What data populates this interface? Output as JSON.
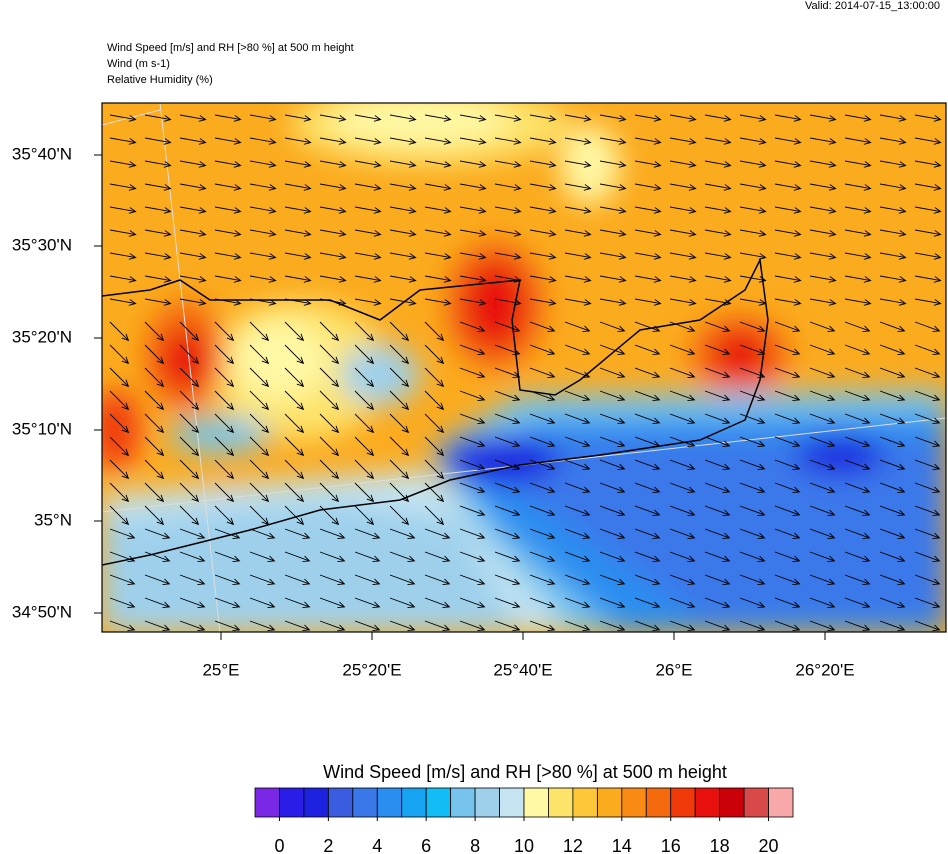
{
  "header": {
    "valid": "Valid: 2014-07-15_13:00:00",
    "lines": [
      "Wind Speed [m/s] and RH [>80 %] at 500 m height",
      "Wind   (m s-1)",
      "Relative Humidity   (%)"
    ]
  },
  "map": {
    "lat_labels": [
      "35°40'N",
      "35°30'N",
      "35°20'N",
      "35°10'N",
      "35°N",
      "34°50'N"
    ],
    "lon_labels": [
      "25°E",
      "25°20'E",
      "25°40'E",
      "26°E",
      "26°20'E"
    ]
  },
  "colorbar": {
    "title": "Wind Speed [m/s] and RH [>80 %] at 500 m height",
    "colors": [
      "#7b27e6",
      "#2a1de8",
      "#1c22e0",
      "#3a5de0",
      "#3a78ea",
      "#2a8ef0",
      "#16a4f2",
      "#12bcf4",
      "#76c4ee",
      "#9ed0ec",
      "#c4e4f2",
      "#fff8a4",
      "#fde36a",
      "#fcc83a",
      "#fbab1e",
      "#f98a14",
      "#f56a0c",
      "#f03a0a",
      "#e8100c",
      "#cc0008",
      "#d84a4a",
      "#f8a8a8"
    ],
    "ticks": [
      0,
      2,
      4,
      6,
      8,
      10,
      12,
      14,
      16,
      18,
      20
    ]
  }
}
